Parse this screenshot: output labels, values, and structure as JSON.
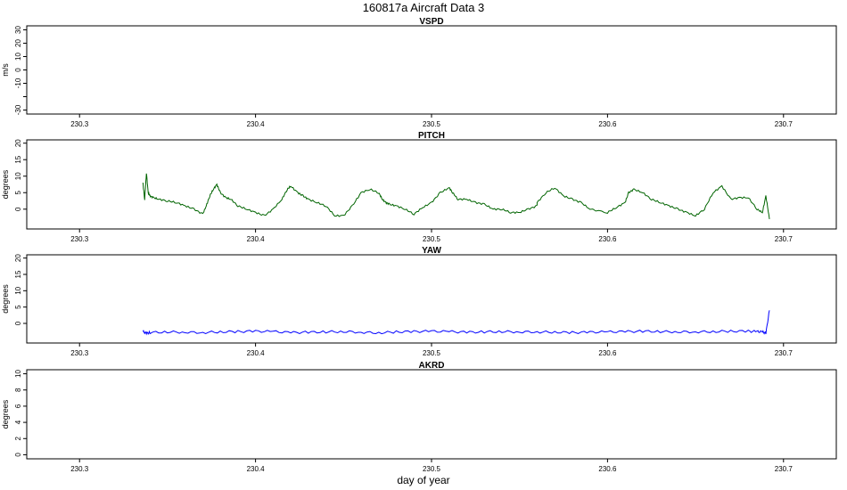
{
  "figure": {
    "title": "160817a   Aircraft Data 3",
    "xlabel": "day of year"
  },
  "chart_data": [
    {
      "type": "line",
      "title": "VSPD",
      "ylabel": "m/s",
      "xlim": [
        230.27,
        230.73
      ],
      "ylim": [
        -33,
        33
      ],
      "x_ticks": [
        "230.3",
        "230.4",
        "230.5",
        "230.6",
        "230.7"
      ],
      "y_ticks": [
        "-30",
        "",
        "-10",
        "0",
        "10",
        "20",
        "30"
      ],
      "grid": false,
      "series": []
    },
    {
      "type": "line",
      "title": "PITCH",
      "ylabel": "degrees",
      "xlim": [
        230.27,
        230.73
      ],
      "ylim": [
        -6,
        21
      ],
      "x_ticks": [
        "230.3",
        "230.4",
        "230.5",
        "230.6",
        "230.7"
      ],
      "y_ticks": [
        "0",
        "5",
        "10",
        "15",
        "20"
      ],
      "grid": false,
      "series": [
        {
          "color": "#006400",
          "x": [
            230.336,
            230.337,
            230.338,
            230.339,
            230.34,
            230.342,
            230.345,
            230.35,
            230.355,
            230.36,
            230.365,
            230.37,
            230.372,
            230.374,
            230.376,
            230.378,
            230.38,
            230.383,
            230.386,
            230.39,
            230.395,
            230.4,
            230.405,
            230.41,
            230.415,
            230.418,
            230.42,
            230.424,
            230.427,
            230.43,
            230.435,
            230.44,
            230.445,
            230.45,
            230.455,
            230.46,
            230.465,
            230.47,
            230.472,
            230.474,
            230.476,
            230.48,
            230.485,
            230.49,
            230.495,
            230.5,
            230.505,
            230.51,
            230.512,
            230.515,
            230.52,
            230.525,
            230.53,
            230.535,
            230.54,
            230.545,
            230.55,
            230.555,
            230.56,
            230.56,
            230.565,
            230.57,
            230.575,
            230.58,
            230.585,
            230.59,
            230.6,
            230.605,
            230.61,
            230.612,
            230.615,
            230.62,
            230.625,
            230.63,
            230.635,
            230.64,
            230.645,
            230.65,
            230.655,
            230.66,
            230.665,
            230.67,
            230.675,
            230.68,
            230.685,
            230.688,
            230.69,
            230.692
          ],
          "y": [
            8,
            3,
            11,
            5,
            4,
            3.5,
            3,
            2.5,
            2,
            1,
            0,
            -1.5,
            1,
            4,
            6,
            7.5,
            5,
            3.5,
            3,
            1,
            0,
            -1,
            -2,
            0,
            3,
            6,
            7,
            5,
            4,
            3,
            2,
            1,
            -2,
            -2,
            1,
            5,
            6,
            5,
            3,
            2,
            1.5,
            1,
            0,
            -1.5,
            0.5,
            2,
            5,
            6.5,
            5,
            3,
            3,
            2,
            1.5,
            0,
            0,
            -1,
            -1,
            0,
            1,
            2,
            5,
            6.5,
            4,
            3,
            2,
            0,
            -1,
            0.5,
            2,
            5,
            6,
            5,
            3,
            2,
            1,
            0,
            -1,
            -2,
            0,
            5,
            7,
            3,
            3.5,
            3.5,
            0,
            -1,
            4,
            -3
          ]
        }
      ]
    },
    {
      "type": "line",
      "title": "YAW",
      "ylabel": "degrees",
      "xlim": [
        230.27,
        230.73
      ],
      "ylim": [
        -6,
        21
      ],
      "x_ticks": [
        "230.3",
        "230.4",
        "230.5",
        "230.6",
        "230.7"
      ],
      "y_ticks": [
        "0",
        "5",
        "10",
        "15",
        "20"
      ],
      "grid": false,
      "series": [
        {
          "color": "#0000ff",
          "x": [
            230.336,
            230.338,
            230.34,
            230.35,
            230.36,
            230.37,
            230.38,
            230.39,
            230.4,
            230.41,
            230.42,
            230.43,
            230.44,
            230.45,
            230.46,
            230.47,
            230.48,
            230.49,
            230.5,
            230.51,
            230.52,
            230.53,
            230.54,
            230.55,
            230.56,
            230.57,
            230.58,
            230.59,
            230.6,
            230.61,
            230.62,
            230.63,
            230.64,
            230.65,
            230.66,
            230.67,
            230.68,
            230.685,
            230.688,
            230.69,
            230.692
          ],
          "y": [
            -2.5,
            -3,
            -2.8,
            -2.6,
            -2.7,
            -2.8,
            -2.6,
            -2.5,
            -2.4,
            -2.5,
            -2.8,
            -2.7,
            -2.6,
            -2.5,
            -2.7,
            -2.9,
            -2.6,
            -2.5,
            -2.4,
            -2.5,
            -2.7,
            -2.6,
            -2.5,
            -2.6,
            -2.6,
            -2.7,
            -2.8,
            -2.7,
            -2.6,
            -2.5,
            -2.4,
            -2.5,
            -2.6,
            -2.6,
            -2.5,
            -2.4,
            -2.4,
            -2.5,
            -2.6,
            -3,
            4
          ]
        }
      ]
    },
    {
      "type": "line",
      "title": "AKRD",
      "ylabel": "degrees",
      "xlim": [
        230.27,
        230.73
      ],
      "ylim": [
        -0.5,
        10.5
      ],
      "x_ticks": [
        "230.3",
        "230.4",
        "230.5",
        "230.6",
        "230.7"
      ],
      "y_ticks": [
        "0",
        "2",
        "4",
        "6",
        "8",
        "10"
      ],
      "grid": false,
      "series": []
    }
  ]
}
